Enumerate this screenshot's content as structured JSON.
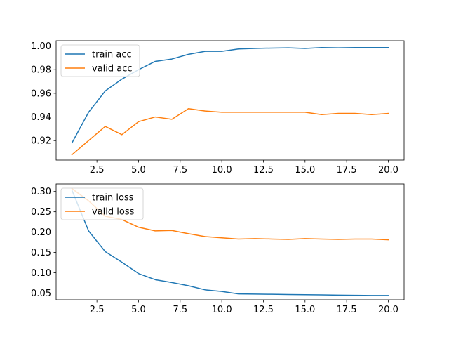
{
  "chart_data": [
    {
      "type": "line",
      "title": "",
      "xlabel": "",
      "ylabel": "",
      "xlim": [
        0.05,
        20.95
      ],
      "ylim": [
        0.9035,
        1.0045
      ],
      "xticks": [
        2.5,
        5.0,
        7.5,
        10.0,
        12.5,
        15.0,
        17.5,
        20.0
      ],
      "xtick_labels": [
        "2.5",
        "5.0",
        "7.5",
        "10.0",
        "12.5",
        "15.0",
        "17.5",
        "20.0"
      ],
      "yticks": [
        0.92,
        0.94,
        0.96,
        0.98,
        1.0
      ],
      "ytick_labels": [
        "0.92",
        "0.94",
        "0.96",
        "0.98",
        "1.00"
      ],
      "grid": false,
      "legend": "upper left",
      "x": [
        1,
        2,
        3,
        4,
        5,
        6,
        7,
        8,
        9,
        10,
        11,
        12,
        13,
        14,
        15,
        16,
        17,
        18,
        19,
        20
      ],
      "series": [
        {
          "name": "train acc",
          "color": "#1f77b4",
          "values": [
            0.918,
            0.944,
            0.962,
            0.972,
            0.98,
            0.987,
            0.989,
            0.993,
            0.9955,
            0.9955,
            0.9975,
            0.998,
            0.9983,
            0.9985,
            0.998,
            0.9987,
            0.9985,
            0.9987,
            0.9987,
            0.9987
          ]
        },
        {
          "name": "valid acc",
          "color": "#ff7f0e",
          "values": [
            0.908,
            0.92,
            0.932,
            0.925,
            0.936,
            0.94,
            0.938,
            0.947,
            0.945,
            0.944,
            0.944,
            0.944,
            0.944,
            0.944,
            0.944,
            0.942,
            0.943,
            0.943,
            0.942,
            0.943
          ]
        }
      ]
    },
    {
      "type": "line",
      "title": "",
      "xlabel": "",
      "ylabel": "",
      "xlim": [
        0.05,
        20.95
      ],
      "ylim": [
        0.0335,
        0.3185
      ],
      "xticks": [
        2.5,
        5.0,
        7.5,
        10.0,
        12.5,
        15.0,
        17.5,
        20.0
      ],
      "xtick_labels": [
        "2.5",
        "5.0",
        "7.5",
        "10.0",
        "12.5",
        "15.0",
        "17.5",
        "20.0"
      ],
      "yticks": [
        0.05,
        0.1,
        0.15,
        0.2,
        0.25,
        0.3
      ],
      "ytick_labels": [
        "0.05",
        "0.10",
        "0.15",
        "0.20",
        "0.25",
        "0.30"
      ],
      "grid": false,
      "legend": "upper left",
      "x": [
        1,
        2,
        3,
        4,
        5,
        6,
        7,
        8,
        9,
        10,
        11,
        12,
        13,
        14,
        15,
        16,
        17,
        18,
        19,
        20
      ],
      "series": [
        {
          "name": "train loss",
          "color": "#1f77b4",
          "values": [
            0.303,
            0.203,
            0.152,
            0.126,
            0.098,
            0.083,
            0.076,
            0.068,
            0.058,
            0.054,
            0.048,
            0.0475,
            0.047,
            0.0465,
            0.046,
            0.0455,
            0.045,
            0.0445,
            0.044,
            0.044
          ]
        },
        {
          "name": "valid loss",
          "color": "#ff7f0e",
          "values": [
            0.307,
            0.277,
            0.239,
            0.231,
            0.212,
            0.203,
            0.204,
            0.196,
            0.189,
            0.186,
            0.183,
            0.184,
            0.183,
            0.182,
            0.184,
            0.183,
            0.182,
            0.183,
            0.183,
            0.181
          ]
        }
      ]
    }
  ]
}
